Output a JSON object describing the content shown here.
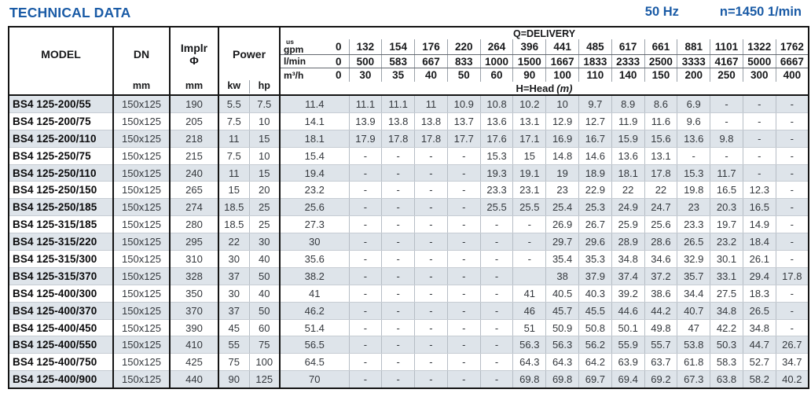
{
  "page": {
    "title": "TECHNICAL DATA",
    "frequency": "50 Hz",
    "speed": "n=1450 1/min"
  },
  "colors": {
    "accent_blue": "#1a5ba6",
    "row_shade": "#dee4ea"
  },
  "table": {
    "model_label": "MODEL",
    "dn_label": "DN",
    "dn_unit": "mm",
    "implr_label": "Implr",
    "implr_symbol": "Φ",
    "implr_unit": "mm",
    "power_label": "Power",
    "kw_label": "kw",
    "hp_label": "hp",
    "delivery_label": "Q=DELIVERY",
    "head_label": "H=Head",
    "head_unit_italic": "(m)",
    "flow_units": [
      {
        "label_small": "us",
        "label": "gpm",
        "zero": "0",
        "values": [
          "132",
          "154",
          "176",
          "220",
          "264",
          "396",
          "441",
          "485",
          "617",
          "661",
          "881",
          "1101",
          "1322",
          "1762"
        ]
      },
      {
        "label_small": "",
        "label": "l/min",
        "zero": "0",
        "values": [
          "500",
          "583",
          "667",
          "833",
          "1000",
          "1500",
          "1667",
          "1833",
          "2333",
          "2500",
          "3333",
          "4167",
          "5000",
          "6667"
        ]
      },
      {
        "label_small": "",
        "label": "m³/h",
        "zero": "0",
        "values": [
          "30",
          "35",
          "40",
          "50",
          "60",
          "90",
          "100",
          "110",
          "140",
          "150",
          "200",
          "250",
          "300",
          "400"
        ]
      }
    ],
    "rows": [
      {
        "model": "BS4 125-200/55",
        "dn": "150x125",
        "implr": "190",
        "kw": "5.5",
        "hp": "7.5",
        "head": [
          "11.4",
          "11.1",
          "11.1",
          "11",
          "10.9",
          "10.8",
          "10.2",
          "10",
          "9.7",
          "8.9",
          "8.6",
          "6.9",
          "-",
          "-",
          "-"
        ]
      },
      {
        "model": "BS4 125-200/75",
        "dn": "150x125",
        "implr": "205",
        "kw": "7.5",
        "hp": "10",
        "head": [
          "14.1",
          "13.9",
          "13.8",
          "13.8",
          "13.7",
          "13.6",
          "13.1",
          "12.9",
          "12.7",
          "11.9",
          "11.6",
          "9.6",
          "-",
          "-",
          "-"
        ]
      },
      {
        "model": "BS4 125-200/110",
        "dn": "150x125",
        "implr": "218",
        "kw": "11",
        "hp": "15",
        "head": [
          "18.1",
          "17.9",
          "17.8",
          "17.8",
          "17.7",
          "17.6",
          "17.1",
          "16.9",
          "16.7",
          "15.9",
          "15.6",
          "13.6",
          "9.8",
          "-",
          "-"
        ]
      },
      {
        "model": "BS4 125-250/75",
        "dn": "150x125",
        "implr": "215",
        "kw": "7.5",
        "hp": "10",
        "head": [
          "15.4",
          "-",
          "-",
          "-",
          "-",
          "15.3",
          "15",
          "14.8",
          "14.6",
          "13.6",
          "13.1",
          "-",
          "-",
          "-",
          "-"
        ]
      },
      {
        "model": "BS4 125-250/110",
        "dn": "150x125",
        "implr": "240",
        "kw": "11",
        "hp": "15",
        "head": [
          "19.4",
          "-",
          "-",
          "-",
          "-",
          "19.3",
          "19.1",
          "19",
          "18.9",
          "18.1",
          "17.8",
          "15.3",
          "11.7",
          "-",
          "-"
        ]
      },
      {
        "model": "BS4 125-250/150",
        "dn": "150x125",
        "implr": "265",
        "kw": "15",
        "hp": "20",
        "head": [
          "23.2",
          "-",
          "-",
          "-",
          "-",
          "23.3",
          "23.1",
          "23",
          "22.9",
          "22",
          "22",
          "19.8",
          "16.5",
          "12.3",
          "-"
        ]
      },
      {
        "model": "BS4 125-250/185",
        "dn": "150x125",
        "implr": "274",
        "kw": "18.5",
        "hp": "25",
        "head": [
          "25.6",
          "-",
          "-",
          "-",
          "-",
          "25.5",
          "25.5",
          "25.4",
          "25.3",
          "24.9",
          "24.7",
          "23",
          "20.3",
          "16.5",
          "-"
        ]
      },
      {
        "model": "BS4 125-315/185",
        "dn": "150x125",
        "implr": "280",
        "kw": "18.5",
        "hp": "25",
        "head": [
          "27.3",
          "-",
          "-",
          "-",
          "-",
          "-",
          "-",
          "26.9",
          "26.7",
          "25.9",
          "25.6",
          "23.3",
          "19.7",
          "14.9",
          "-"
        ]
      },
      {
        "model": "BS4 125-315/220",
        "dn": "150x125",
        "implr": "295",
        "kw": "22",
        "hp": "30",
        "head": [
          "30",
          "-",
          "-",
          "-",
          "-",
          "-",
          "-",
          "29.7",
          "29.6",
          "28.9",
          "28.6",
          "26.5",
          "23.2",
          "18.4",
          "-"
        ]
      },
      {
        "model": "BS4 125-315/300",
        "dn": "150x125",
        "implr": "310",
        "kw": "30",
        "hp": "40",
        "head": [
          "35.6",
          "-",
          "-",
          "-",
          "-",
          "-",
          "-",
          "35.4",
          "35.3",
          "34.8",
          "34.6",
          "32.9",
          "30.1",
          "26.1",
          "-"
        ]
      },
      {
        "model": "BS4 125-315/370",
        "dn": "150x125",
        "implr": "328",
        "kw": "37",
        "hp": "50",
        "head": [
          "38.2",
          "-",
          "-",
          "-",
          "-",
          "-",
          "",
          "38",
          "37.9",
          "37.4",
          "37.2",
          "35.7",
          "33.1",
          "29.4",
          "17.8"
        ]
      },
      {
        "model": "BS4 125-400/300",
        "dn": "150x125",
        "implr": "350",
        "kw": "30",
        "hp": "40",
        "head": [
          "41",
          "-",
          "-",
          "-",
          "-",
          "-",
          "41",
          "40.5",
          "40.3",
          "39.2",
          "38.6",
          "34.4",
          "27.5",
          "18.3",
          "-"
        ]
      },
      {
        "model": "BS4 125-400/370",
        "dn": "150x125",
        "implr": "370",
        "kw": "37",
        "hp": "50",
        "head": [
          "46.2",
          "-",
          "-",
          "-",
          "-",
          "-",
          "46",
          "45.7",
          "45.5",
          "44.6",
          "44.2",
          "40.7",
          "34.8",
          "26.5",
          "-"
        ]
      },
      {
        "model": "BS4 125-400/450",
        "dn": "150x125",
        "implr": "390",
        "kw": "45",
        "hp": "60",
        "head": [
          "51.4",
          "-",
          "-",
          "-",
          "-",
          "-",
          "51",
          "50.9",
          "50.8",
          "50.1",
          "49.8",
          "47",
          "42.2",
          "34.8",
          "-"
        ]
      },
      {
        "model": "BS4 125-400/550",
        "dn": "150x125",
        "implr": "410",
        "kw": "55",
        "hp": "75",
        "head": [
          "56.5",
          "-",
          "-",
          "-",
          "-",
          "-",
          "56.3",
          "56.3",
          "56.2",
          "55.9",
          "55.7",
          "53.8",
          "50.3",
          "44.7",
          "26.7"
        ]
      },
      {
        "model": "BS4 125-400/750",
        "dn": "150x125",
        "implr": "425",
        "kw": "75",
        "hp": "100",
        "head": [
          "64.5",
          "-",
          "-",
          "-",
          "-",
          "-",
          "64.3",
          "64.3",
          "64.2",
          "63.9",
          "63.7",
          "61.8",
          "58.3",
          "52.7",
          "34.7"
        ]
      },
      {
        "model": "BS4 125-400/900",
        "dn": "150x125",
        "implr": "440",
        "kw": "90",
        "hp": "125",
        "head": [
          "70",
          "-",
          "-",
          "-",
          "-",
          "-",
          "69.8",
          "69.8",
          "69.7",
          "69.4",
          "69.2",
          "67.3",
          "63.8",
          "58.2",
          "40.2"
        ]
      }
    ]
  }
}
